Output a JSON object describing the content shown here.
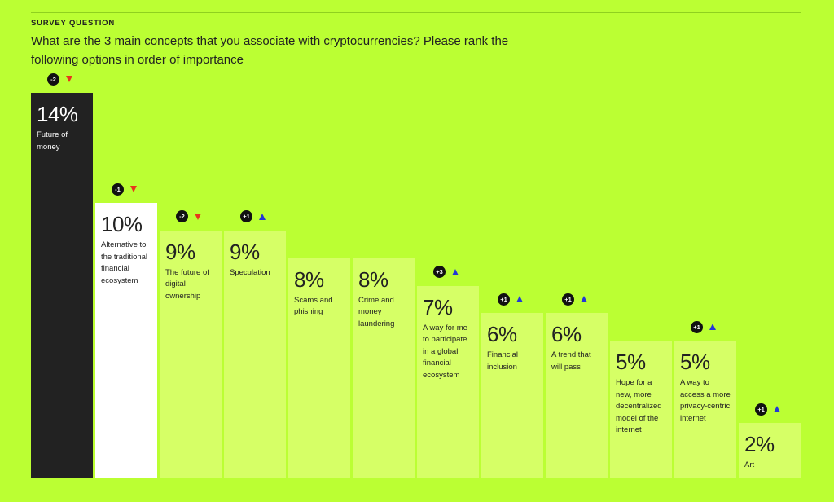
{
  "header": {
    "eyebrow": "SURVEY QUESTION",
    "question": "What are the 3 main concepts that you associate with cryptocurrencies? Please rank the following options in order of importance"
  },
  "colors": {
    "background": "#bbff33",
    "first_bar": "#222222",
    "second_bar": "#ffffff",
    "other_bars": "#d6ff66",
    "down": "#e8361c",
    "up": "#2438d6"
  },
  "chart_data": {
    "type": "bar",
    "title": "",
    "xlabel": "",
    "ylabel": "",
    "ylim": [
      0,
      14
    ],
    "unit": "%",
    "bars": [
      {
        "value": 14,
        "value_label": "14%",
        "label": "Future of money",
        "change": "-2",
        "direction": "down"
      },
      {
        "value": 10,
        "value_label": "10%",
        "label": "Alternative to the traditional financial ecosystem",
        "change": "-1",
        "direction": "down"
      },
      {
        "value": 9,
        "value_label": "9%",
        "label": "The future of digital ownership",
        "change": "-2",
        "direction": "down"
      },
      {
        "value": 9,
        "value_label": "9%",
        "label": "Speculation",
        "change": "+1",
        "direction": "up"
      },
      {
        "value": 8,
        "value_label": "8%",
        "label": "Scams and phishing",
        "change": "",
        "direction": ""
      },
      {
        "value": 8,
        "value_label": "8%",
        "label": "Crime and money laundering",
        "change": "",
        "direction": ""
      },
      {
        "value": 7,
        "value_label": "7%",
        "label": "A way for me to participate in a global financial ecosystem",
        "change": "+3",
        "direction": "up"
      },
      {
        "value": 6,
        "value_label": "6%",
        "label": "Financial inclusion",
        "change": "+1",
        "direction": "up"
      },
      {
        "value": 6,
        "value_label": "6%",
        "label": "A trend that will pass",
        "change": "+1",
        "direction": "up"
      },
      {
        "value": 5,
        "value_label": "5%",
        "label": "Hope for a new, more decentralized model of the internet",
        "change": "",
        "direction": ""
      },
      {
        "value": 5,
        "value_label": "5%",
        "label": "A way to access a more privacy-centric internet",
        "change": "+1",
        "direction": "up"
      },
      {
        "value": 2,
        "value_label": "2%",
        "label": "Art",
        "change": "+1",
        "direction": "up"
      }
    ]
  }
}
